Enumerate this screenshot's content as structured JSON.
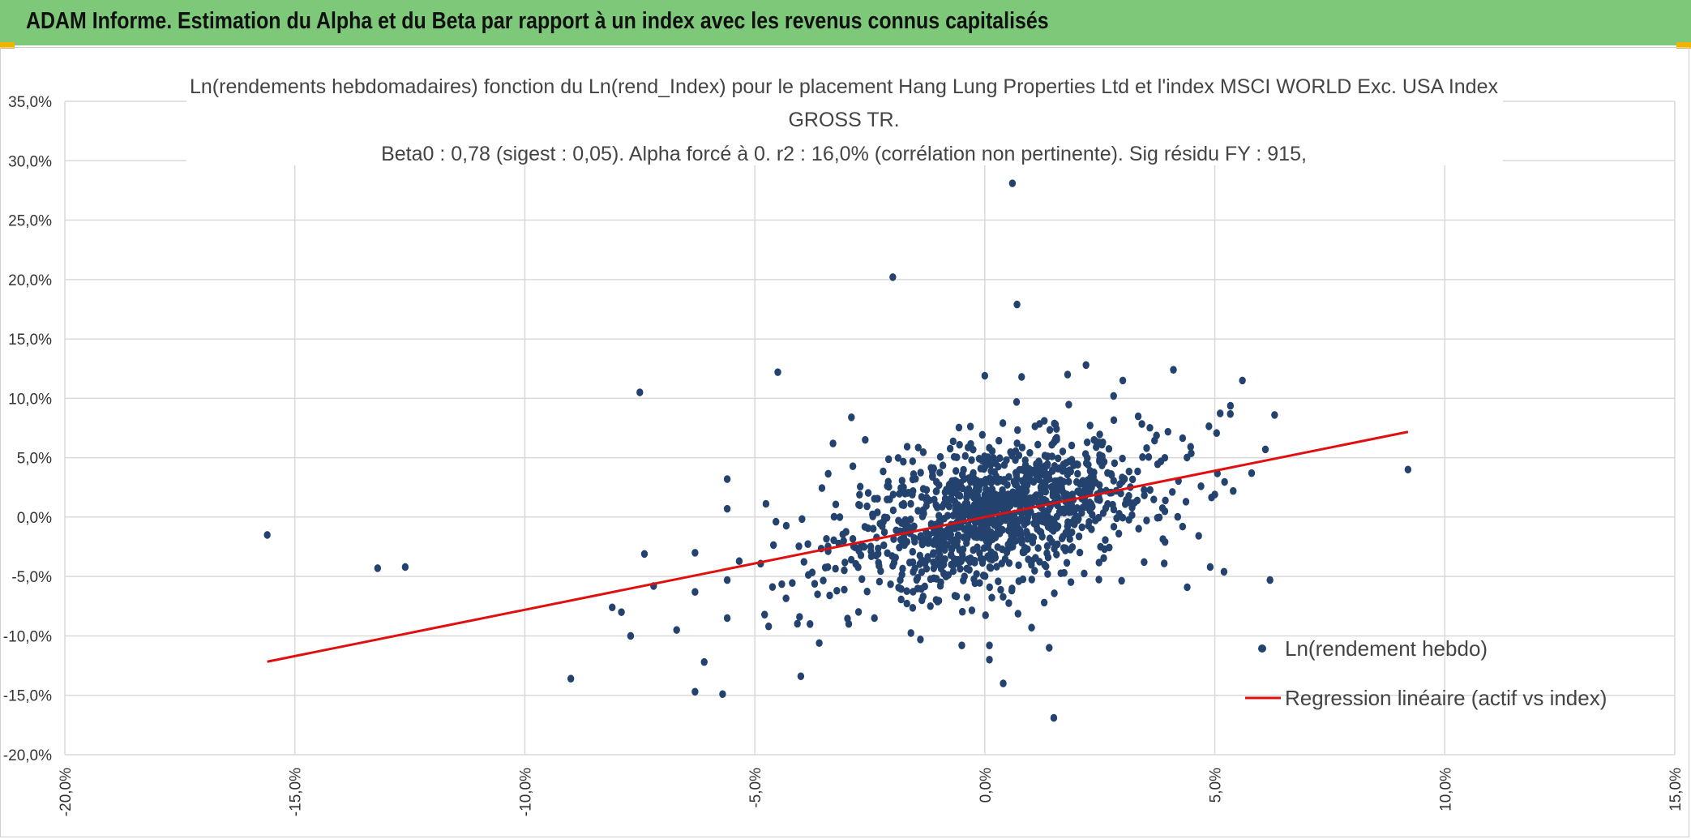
{
  "header": {
    "title": "ADAM Informe. Estimation du Alpha et du Beta par rapport à un index avec les revenus connus capitalisés"
  },
  "colors": {
    "banner": "#7ec87a",
    "accent": "#f0b400",
    "points": "#24426e",
    "regression": "#e01010",
    "grid": "#d9d9d9"
  },
  "chart_data": {
    "type": "scatter",
    "title_lines": [
      "Ln(rendements hebdomadaires) fonction du Ln(rend_Index) pour le placement Hang Lung Properties Ltd et l'index MSCI WORLD Exc. USA Index",
      "GROSS TR.",
      "Beta0 : 0,78 (sigest : 0,05). Alpha forcé à 0. r2 : 16,0% (corrélation non pertinente). Sig résidu FY : 915,"
    ],
    "xlim": [
      -20,
      15
    ],
    "ylim": [
      -20,
      35
    ],
    "x_ticks": [
      -20,
      -15,
      -10,
      -5,
      0,
      5,
      10,
      15
    ],
    "y_ticks": [
      35,
      30,
      25,
      20,
      15,
      10,
      5,
      0,
      -5,
      -10,
      -15,
      -20
    ],
    "x_tick_labels": [
      "-20,0%",
      "-15,0%",
      "-10,0%",
      "-5,0%",
      "0,0%",
      "5,0%",
      "10,0%",
      "15,0%"
    ],
    "y_tick_labels": [
      "35,0%",
      "30,0%",
      "25,0%",
      "20,0%",
      "15,0%",
      "10,0%",
      "5,0%",
      "0,0%",
      "-5,0%",
      "-10,0%",
      "-15,0%",
      "-20,0%"
    ],
    "legend": {
      "position": "bottom-right",
      "scatter_label": "Ln(rendement hebdo)",
      "line_label": "Regression linéaire (actif vs index)"
    },
    "regression": {
      "beta": 0.78,
      "alpha": 0,
      "x_range": [
        -15.6,
        9.2
      ]
    },
    "cluster": {
      "count": 1200,
      "x_mean": 0.3,
      "x_sd": 1.5,
      "beta": 0.78,
      "resid_sd": 2.9
    },
    "outliers": [
      [
        -15.6,
        -1.5
      ],
      [
        -13.2,
        -4.3
      ],
      [
        -12.6,
        -4.2
      ],
      [
        -9.0,
        -13.6
      ],
      [
        -8.1,
        -7.6
      ],
      [
        -7.9,
        -8.0
      ],
      [
        -7.7,
        -10.0
      ],
      [
        -7.5,
        10.5
      ],
      [
        -7.4,
        -3.1
      ],
      [
        -7.2,
        -5.8
      ],
      [
        -6.7,
        -9.5
      ],
      [
        -6.3,
        -14.7
      ],
      [
        -6.3,
        -6.3
      ],
      [
        -6.3,
        -3.0
      ],
      [
        -6.1,
        -12.2
      ],
      [
        -5.7,
        -14.9
      ],
      [
        -5.6,
        0.7
      ],
      [
        -5.6,
        3.2
      ],
      [
        -5.6,
        -8.5
      ],
      [
        -5.6,
        -5.3
      ],
      [
        -4.5,
        12.2
      ],
      [
        -4.0,
        -13.4
      ],
      [
        -2.9,
        8.4
      ],
      [
        -2.0,
        20.2
      ],
      [
        -0.5,
        -10.8
      ],
      [
        0.0,
        11.9
      ],
      [
        0.1,
        -10.8
      ],
      [
        0.1,
        -12.0
      ],
      [
        0.4,
        -14.0
      ],
      [
        0.6,
        28.1
      ],
      [
        0.7,
        17.9
      ],
      [
        0.8,
        11.8
      ],
      [
        1.4,
        -11.0
      ],
      [
        1.5,
        -16.9
      ],
      [
        1.8,
        12.0
      ],
      [
        2.2,
        12.8
      ],
      [
        2.8,
        10.2
      ],
      [
        3.0,
        11.5
      ],
      [
        4.1,
        12.4
      ],
      [
        4.4,
        -5.9
      ],
      [
        4.9,
        -4.2
      ],
      [
        5.2,
        -4.6
      ],
      [
        5.6,
        11.5
      ],
      [
        5.8,
        3.7
      ],
      [
        6.2,
        -5.3
      ],
      [
        6.3,
        8.6
      ],
      [
        6.1,
        5.7
      ],
      [
        9.2,
        4.0
      ],
      [
        5.0,
        1.9
      ],
      [
        5.4,
        2.2
      ],
      [
        4.7,
        2.6
      ],
      [
        -3.3,
        6.2
      ],
      [
        -2.6,
        6.5
      ],
      [
        -3.8,
        -9.0
      ],
      [
        -4.7,
        -9.2
      ],
      [
        -2.4,
        -8.5
      ],
      [
        -1.4,
        -10.3
      ],
      [
        3.9,
        -3.9
      ],
      [
        4.3,
        -0.8
      ],
      [
        -3.6,
        -10.6
      ]
    ]
  }
}
